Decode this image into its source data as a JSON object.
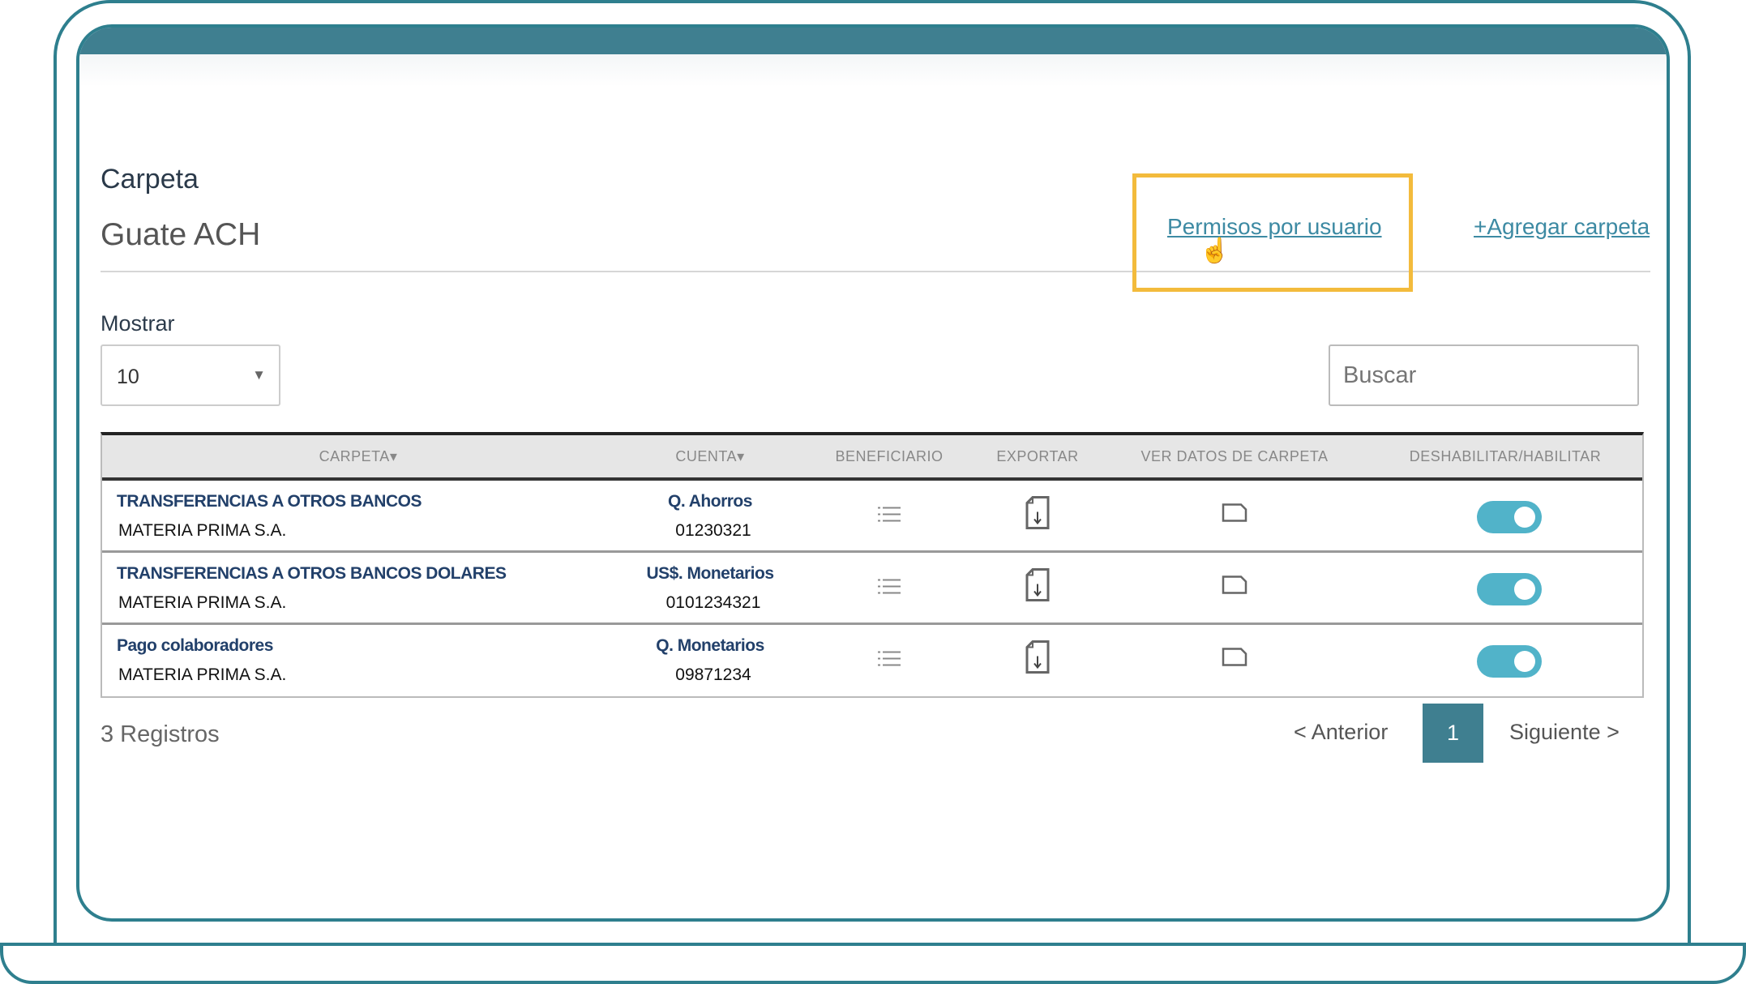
{
  "header": {
    "title": "Carpeta",
    "subtitle": "Guate ACH",
    "permissions_link": "Permisos por usuario",
    "add_folder_link": "+Agregar carpeta"
  },
  "controls": {
    "show_label": "Mostrar",
    "show_value": "10",
    "search_placeholder": "Buscar"
  },
  "table": {
    "columns": [
      "CARPETA",
      "CUENTA",
      "BENEFICIARIO",
      "EXPORTAR",
      "VER DATOS DE CARPETA",
      "DESHABILITAR/HABILITAR"
    ],
    "rows": [
      {
        "carpeta": "TRANSFERENCIAS A OTROS BANCOS",
        "empresa": "MATERIA PRIMA S.A.",
        "cuenta_tipo": "Q. Ahorros",
        "cuenta_num": "01230321",
        "enabled": true
      },
      {
        "carpeta": "TRANSFERENCIAS A OTROS BANCOS DOLARES",
        "empresa": "MATERIA PRIMA S.A.",
        "cuenta_tipo": "US$. Monetarios",
        "cuenta_num": "0101234321",
        "enabled": true
      },
      {
        "carpeta": "Pago colaboradores",
        "empresa": "MATERIA PRIMA S.A.",
        "cuenta_tipo": "Q. Monetarios",
        "cuenta_num": "09871234",
        "enabled": true
      }
    ]
  },
  "footer": {
    "records": "3 Registros",
    "prev": "< Anterior",
    "page": "1",
    "next": "Siguiente >"
  },
  "colors": {
    "accent": "#3f7f90",
    "toggle": "#51b3c9",
    "highlight": "#f3bb3c",
    "link": "#3d8aa3"
  }
}
